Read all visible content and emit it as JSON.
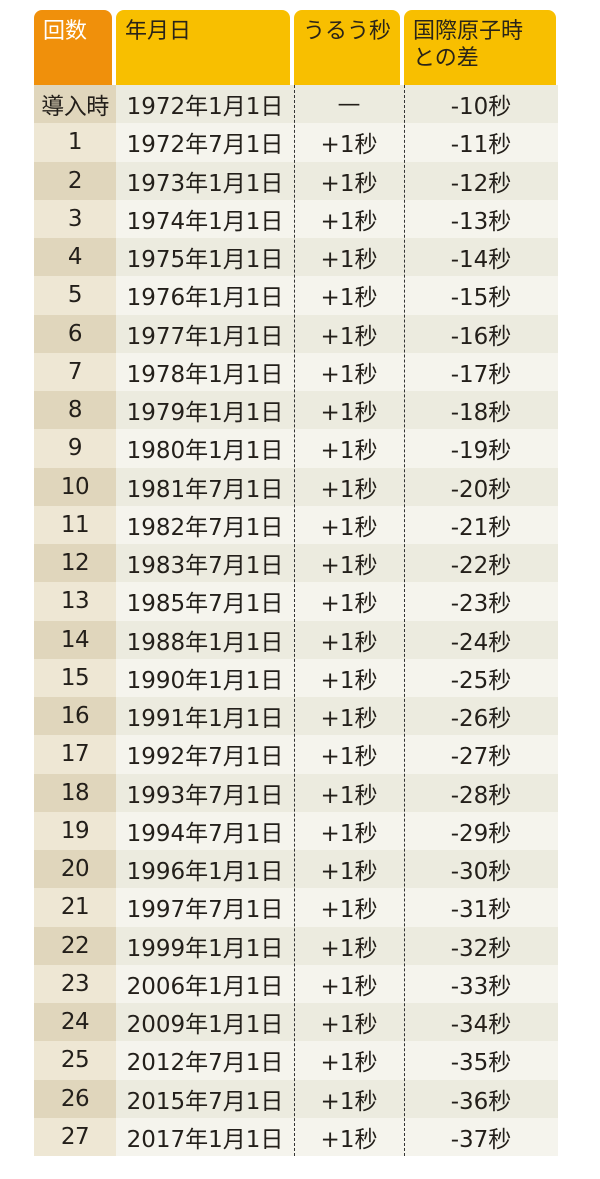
{
  "header": {
    "count": "回数",
    "date": "年月日",
    "leap": "うるう秒",
    "diff_line1": "国際原子時",
    "diff_line2": "との差"
  },
  "colors": {
    "header_first": "#f0900b",
    "header": "#f8bf00"
  },
  "rows": [
    {
      "n": "導入時",
      "date": "1972年1月1日",
      "leap": "—",
      "diff": "-10秒"
    },
    {
      "n": "1",
      "date": "1972年7月1日",
      "leap": "+1秒",
      "diff": "-11秒"
    },
    {
      "n": "2",
      "date": "1973年1月1日",
      "leap": "+1秒",
      "diff": "-12秒"
    },
    {
      "n": "3",
      "date": "1974年1月1日",
      "leap": "+1秒",
      "diff": "-13秒"
    },
    {
      "n": "4",
      "date": "1975年1月1日",
      "leap": "+1秒",
      "diff": "-14秒"
    },
    {
      "n": "5",
      "date": "1976年1月1日",
      "leap": "+1秒",
      "diff": "-15秒"
    },
    {
      "n": "6",
      "date": "1977年1月1日",
      "leap": "+1秒",
      "diff": "-16秒"
    },
    {
      "n": "7",
      "date": "1978年1月1日",
      "leap": "+1秒",
      "diff": "-17秒"
    },
    {
      "n": "8",
      "date": "1979年1月1日",
      "leap": "+1秒",
      "diff": "-18秒"
    },
    {
      "n": "9",
      "date": "1980年1月1日",
      "leap": "+1秒",
      "diff": "-19秒"
    },
    {
      "n": "10",
      "date": "1981年7月1日",
      "leap": "+1秒",
      "diff": "-20秒"
    },
    {
      "n": "11",
      "date": "1982年7月1日",
      "leap": "+1秒",
      "diff": "-21秒"
    },
    {
      "n": "12",
      "date": "1983年7月1日",
      "leap": "+1秒",
      "diff": "-22秒"
    },
    {
      "n": "13",
      "date": "1985年7月1日",
      "leap": "+1秒",
      "diff": "-23秒"
    },
    {
      "n": "14",
      "date": "1988年1月1日",
      "leap": "+1秒",
      "diff": "-24秒"
    },
    {
      "n": "15",
      "date": "1990年1月1日",
      "leap": "+1秒",
      "diff": "-25秒"
    },
    {
      "n": "16",
      "date": "1991年1月1日",
      "leap": "+1秒",
      "diff": "-26秒"
    },
    {
      "n": "17",
      "date": "1992年7月1日",
      "leap": "+1秒",
      "diff": "-27秒"
    },
    {
      "n": "18",
      "date": "1993年7月1日",
      "leap": "+1秒",
      "diff": "-28秒"
    },
    {
      "n": "19",
      "date": "1994年7月1日",
      "leap": "+1秒",
      "diff": "-29秒"
    },
    {
      "n": "20",
      "date": "1996年1月1日",
      "leap": "+1秒",
      "diff": "-30秒"
    },
    {
      "n": "21",
      "date": "1997年7月1日",
      "leap": "+1秒",
      "diff": "-31秒"
    },
    {
      "n": "22",
      "date": "1999年1月1日",
      "leap": "+1秒",
      "diff": "-32秒"
    },
    {
      "n": "23",
      "date": "2006年1月1日",
      "leap": "+1秒",
      "diff": "-33秒"
    },
    {
      "n": "24",
      "date": "2009年1月1日",
      "leap": "+1秒",
      "diff": "-34秒"
    },
    {
      "n": "25",
      "date": "2012年7月1日",
      "leap": "+1秒",
      "diff": "-35秒"
    },
    {
      "n": "26",
      "date": "2015年7月1日",
      "leap": "+1秒",
      "diff": "-36秒"
    },
    {
      "n": "27",
      "date": "2017年1月1日",
      "leap": "+1秒",
      "diff": "-37秒"
    }
  ]
}
